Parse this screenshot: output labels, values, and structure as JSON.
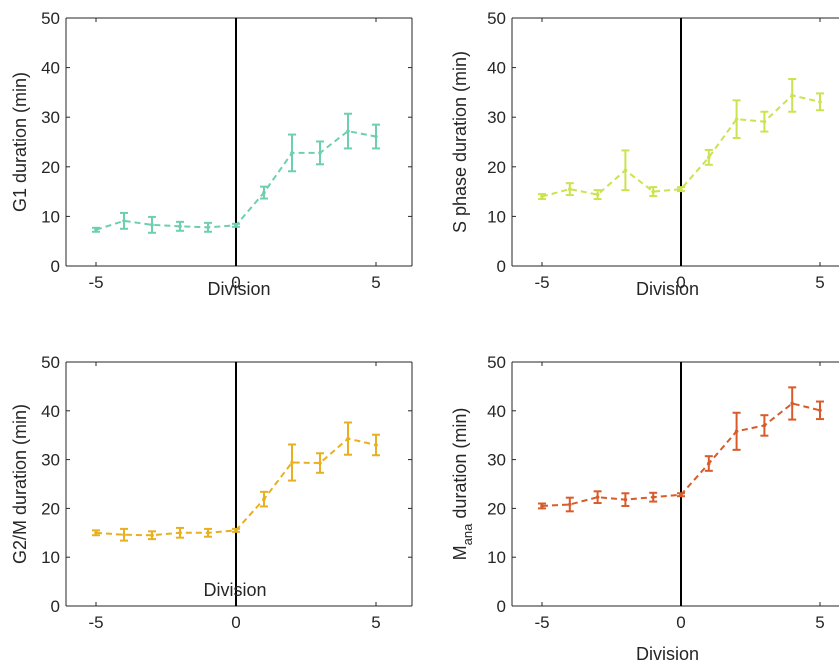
{
  "colors": {
    "axis": "#262626",
    "divider": "#000000",
    "background": "#ffffff"
  },
  "chart_data": [
    {
      "type": "line",
      "style": "dashed line with error bars",
      "color": "#6ecfb0",
      "xlabel": "Division",
      "ylabel": "G1 duration (min)",
      "xlim": [
        -5.5,
        5.5
      ],
      "ylim": [
        0,
        50
      ],
      "xticks": [
        -5,
        0,
        5
      ],
      "yticks": [
        0,
        10,
        20,
        30,
        40,
        50
      ],
      "xtick_labels": [
        "-5",
        "0",
        "5"
      ],
      "ytick_labels": [
        "0",
        "10",
        "20",
        "30",
        "40",
        "50"
      ],
      "grid": false,
      "vertical_reference_line_x": 0,
      "x": [
        -5,
        -4,
        -3,
        -2,
        -1,
        0,
        1,
        2,
        3,
        4,
        5
      ],
      "y": [
        7.3,
        9.1,
        8.3,
        8.0,
        7.8,
        8.2,
        14.8,
        22.8,
        22.8,
        27.2,
        26.1
      ],
      "err": [
        0.4,
        1.6,
        1.6,
        0.9,
        0.9,
        0.3,
        1.2,
        3.7,
        2.3,
        3.5,
        2.4
      ]
    },
    {
      "type": "line",
      "style": "dashed line with error bars",
      "color": "#cde24f",
      "xlabel": "Division",
      "ylabel": "S phase duration (min)",
      "xlim": [
        -5.5,
        5.5
      ],
      "ylim": [
        0,
        50
      ],
      "xticks": [
        -5,
        0,
        5
      ],
      "yticks": [
        0,
        10,
        20,
        30,
        40,
        50
      ],
      "xtick_labels": [
        "-5",
        "0",
        "5"
      ],
      "ytick_labels": [
        "0",
        "10",
        "20",
        "30",
        "40",
        "50"
      ],
      "grid": false,
      "vertical_reference_line_x": 0,
      "x": [
        -5,
        -4,
        -3,
        -2,
        -1,
        0,
        1,
        2,
        3,
        4,
        5
      ],
      "y": [
        14.0,
        15.5,
        14.4,
        19.3,
        15.0,
        15.5,
        21.9,
        29.6,
        29.1,
        34.4,
        33.1
      ],
      "err": [
        0.5,
        1.2,
        0.9,
        4.0,
        0.9,
        0.4,
        1.5,
        3.8,
        2.0,
        3.3,
        1.7
      ]
    },
    {
      "type": "line",
      "style": "dashed line with error bars",
      "color": "#e8b021",
      "xlabel": "",
      "ylabel": "G2/M duration (min)",
      "annotation": "Division",
      "xlim": [
        -5.5,
        5.5
      ],
      "ylim": [
        0,
        50
      ],
      "xticks": [
        -5,
        0,
        5
      ],
      "yticks": [
        0,
        10,
        20,
        30,
        40,
        50
      ],
      "xtick_labels": [
        "-5",
        "0",
        "5"
      ],
      "ytick_labels": [
        "0",
        "10",
        "20",
        "30",
        "40",
        "50"
      ],
      "grid": false,
      "vertical_reference_line_x": 0,
      "x": [
        -5,
        -4,
        -3,
        -2,
        -1,
        0,
        1,
        2,
        3,
        4,
        5
      ],
      "y": [
        15.0,
        14.6,
        14.5,
        15.0,
        15.0,
        15.5,
        21.9,
        29.4,
        29.3,
        34.3,
        33.0
      ],
      "err": [
        0.5,
        1.2,
        0.8,
        1.0,
        0.8,
        0.3,
        1.5,
        3.7,
        2.0,
        3.3,
        2.1
      ]
    },
    {
      "type": "line",
      "style": "dashed line with error bars",
      "color": "#d95b2a",
      "xlabel": "Division",
      "ylabel": "M",
      "ylabel_subscript": "ana",
      "ylabel_suffix": " duration (min)",
      "xlim": [
        -5.5,
        5.5
      ],
      "ylim": [
        0,
        50
      ],
      "xticks": [
        -5,
        0,
        5
      ],
      "yticks": [
        0,
        10,
        20,
        30,
        40,
        50
      ],
      "xtick_labels": [
        "-5",
        "0",
        "5"
      ],
      "ytick_labels": [
        "0",
        "10",
        "20",
        "30",
        "40",
        "50"
      ],
      "grid": false,
      "vertical_reference_line_x": 0,
      "x": [
        -5,
        -4,
        -3,
        -2,
        -1,
        0,
        1,
        2,
        3,
        4,
        5
      ],
      "y": [
        20.5,
        20.8,
        22.3,
        21.8,
        22.3,
        22.8,
        29.2,
        35.8,
        37.0,
        41.5,
        40.1
      ],
      "err": [
        0.5,
        1.4,
        1.2,
        1.3,
        0.9,
        0.3,
        1.5,
        3.8,
        2.1,
        3.3,
        1.8
      ]
    }
  ]
}
